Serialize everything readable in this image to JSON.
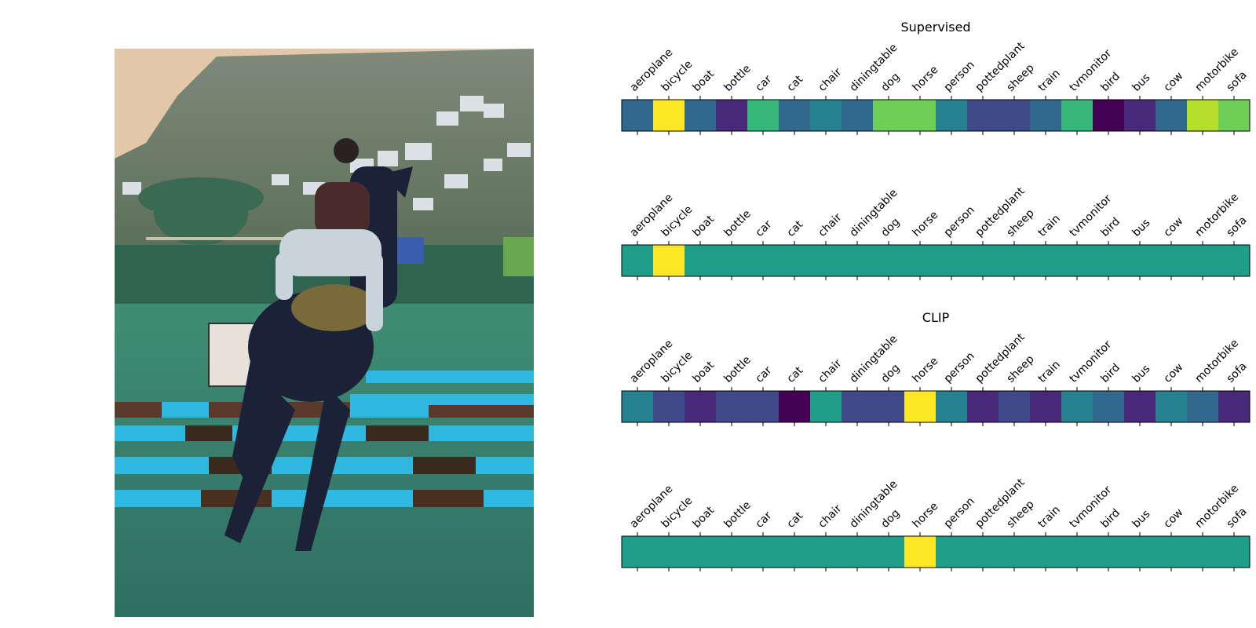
{
  "colors": {
    "viridis": [
      "#440154",
      "#482878",
      "#3e4989",
      "#31688e",
      "#26828e",
      "#1f9e89",
      "#35b779",
      "#6ece58",
      "#b5de2b",
      "#fde725"
    ]
  },
  "photo": {
    "kind": "natural-image",
    "subject": "rider on dark horse jumping blue and black striped show-jumping rails; hillside with white houses, palm tree and hedge behind"
  },
  "chart_data": [
    {
      "type": "heatmap",
      "title": "Supervised",
      "categories": [
        "aeroplane",
        "bicycle",
        "boat",
        "bottle",
        "car",
        "cat",
        "chair",
        "diningtable",
        "dog",
        "horse",
        "person",
        "pottedplant",
        "sheep",
        "train",
        "tvmonitor",
        "bird",
        "bus",
        "cow",
        "motorbike",
        "sofa"
      ],
      "values": [
        0.33,
        1.0,
        0.33,
        0.14,
        0.65,
        0.36,
        0.48,
        0.34,
        0.76,
        0.76,
        0.47,
        0.19,
        0.27,
        0.37,
        0.64,
        0.0,
        0.16,
        0.38,
        0.88,
        0.77
      ]
    },
    {
      "type": "heatmap",
      "title": "",
      "categories": [
        "aeroplane",
        "bicycle",
        "boat",
        "bottle",
        "car",
        "cat",
        "chair",
        "diningtable",
        "dog",
        "horse",
        "person",
        "pottedplant",
        "sheep",
        "train",
        "tvmonitor",
        "bird",
        "bus",
        "cow",
        "motorbike",
        "sofa"
      ],
      "values": [
        0.5,
        1.0,
        0.5,
        0.5,
        0.5,
        0.5,
        0.5,
        0.5,
        0.5,
        0.5,
        0.5,
        0.5,
        0.5,
        0.5,
        0.5,
        0.5,
        0.5,
        0.5,
        0.5,
        0.5
      ]
    },
    {
      "type": "heatmap",
      "title": "CLIP",
      "categories": [
        "aeroplane",
        "bicycle",
        "boat",
        "bottle",
        "car",
        "cat",
        "chair",
        "diningtable",
        "dog",
        "horse",
        "person",
        "pottedplant",
        "sheep",
        "train",
        "tvmonitor",
        "bird",
        "bus",
        "cow",
        "motorbike",
        "sofa"
      ],
      "values": [
        0.42,
        0.26,
        0.12,
        0.26,
        0.24,
        0.0,
        0.58,
        0.27,
        0.24,
        1.0,
        0.44,
        0.14,
        0.2,
        0.13,
        0.44,
        0.3,
        0.1,
        0.44,
        0.31,
        0.12
      ]
    },
    {
      "type": "heatmap",
      "title": "",
      "categories": [
        "aeroplane",
        "bicycle",
        "boat",
        "bottle",
        "car",
        "cat",
        "chair",
        "diningtable",
        "dog",
        "horse",
        "person",
        "pottedplant",
        "sheep",
        "train",
        "tvmonitor",
        "bird",
        "bus",
        "cow",
        "motorbike",
        "sofa"
      ],
      "values": [
        0.5,
        0.5,
        0.5,
        0.5,
        0.5,
        0.5,
        0.5,
        0.5,
        0.5,
        0.95,
        0.5,
        0.5,
        0.5,
        0.5,
        0.5,
        0.5,
        0.5,
        0.5,
        0.5,
        0.5
      ]
    }
  ]
}
